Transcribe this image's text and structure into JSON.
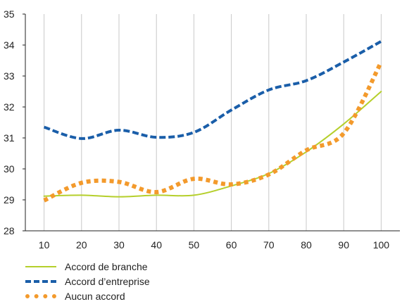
{
  "chart_data": {
    "type": "line",
    "x": [
      10,
      20,
      30,
      40,
      50,
      60,
      70,
      80,
      90,
      100
    ],
    "xticks": [
      "10",
      "20",
      "30",
      "40",
      "50",
      "60",
      "70",
      "80",
      "90",
      "100"
    ],
    "yticks": [
      "28",
      "29",
      "30",
      "31",
      "32",
      "33",
      "34",
      "35"
    ],
    "ylim": [
      28,
      35
    ],
    "xlim": [
      5,
      105
    ],
    "grid": "vertical",
    "legend_position": "bottom-left",
    "series": [
      {
        "name": "Accord de branche",
        "color": "#b5cf2b",
        "style": "solid",
        "values": [
          29.12,
          29.15,
          29.1,
          29.15,
          29.15,
          29.45,
          29.85,
          30.55,
          31.45,
          32.5
        ]
      },
      {
        "name": "Accord d’entreprise",
        "color": "#1a5ea9",
        "style": "dashed",
        "values": [
          31.35,
          30.98,
          31.25,
          31.02,
          31.18,
          31.9,
          32.55,
          32.85,
          33.45,
          34.12
        ]
      },
      {
        "name": "Aucun accord",
        "color": "#f39a2c",
        "style": "dotted",
        "values": [
          28.98,
          29.55,
          29.58,
          29.25,
          29.68,
          29.5,
          29.82,
          30.6,
          31.15,
          33.45
        ]
      }
    ]
  }
}
